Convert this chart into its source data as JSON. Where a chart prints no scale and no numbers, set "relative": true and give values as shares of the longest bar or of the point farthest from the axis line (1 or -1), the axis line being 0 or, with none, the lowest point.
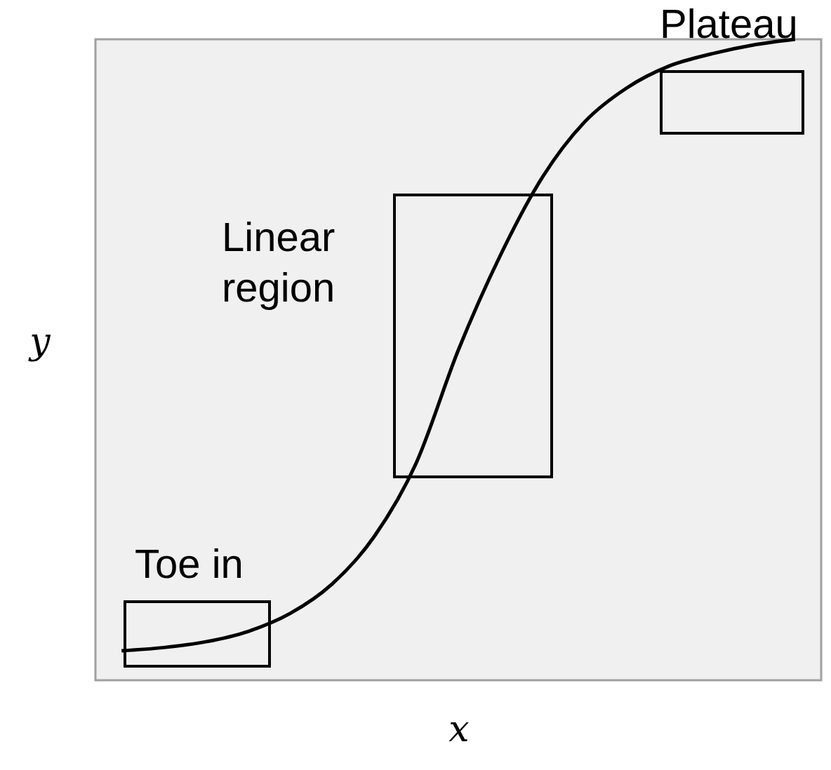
{
  "chart_data": {
    "type": "line",
    "relative": true,
    "xlabel": "x",
    "ylabel": "y",
    "color": "#000000",
    "categories": [
      null,
      null,
      null,
      null,
      null,
      null,
      null,
      null,
      null,
      null,
      null,
      null,
      null,
      null,
      null,
      null,
      null
    ],
    "values": [
      0.046,
      0.051,
      0.06,
      0.076,
      0.104,
      0.15,
      0.224,
      0.339,
      0.515,
      0.663,
      0.785,
      0.871,
      0.924,
      0.958,
      0.977,
      0.991,
      1
    ],
    "annotations": [
      "Toe in",
      "Linear region",
      "Plateau"
    ],
    "grid": false
  }
}
